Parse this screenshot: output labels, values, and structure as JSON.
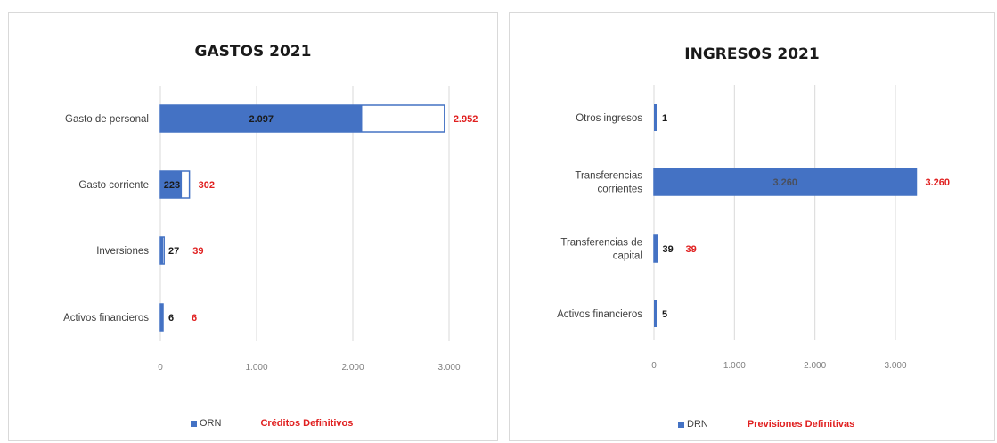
{
  "colors": {
    "executed": "#4472c4",
    "definitive": "#e02020",
    "grid": "#d9d9d9"
  },
  "chart_data": [
    {
      "type": "bar",
      "orientation": "horizontal",
      "title": "GASTOS 2021",
      "categories": [
        "Gasto de personal",
        "Gasto corriente",
        "Inversiones",
        "Activos financieros"
      ],
      "series": [
        {
          "name": "ORN",
          "values": [
            2097,
            223,
            27,
            6
          ],
          "labels": [
            "2.097",
            "223",
            "27",
            "6"
          ],
          "style": "filled"
        },
        {
          "name": "Créditos Definitivos",
          "values": [
            2952,
            302,
            39,
            6
          ],
          "labels": [
            "2.952",
            "302",
            "39",
            "6"
          ],
          "style": "outline"
        }
      ],
      "xlim": [
        0,
        3000
      ],
      "xticks": [
        0,
        1000,
        2000,
        3000
      ],
      "xtick_labels": [
        "0",
        "1.000",
        "2.000",
        "3.000"
      ],
      "grid": "vertical",
      "legend_position": "bottom"
    },
    {
      "type": "bar",
      "orientation": "horizontal",
      "title": "INGRESOS 2021",
      "categories": [
        "Otros ingresos",
        "Transferencias corrientes",
        "Transferencias de capital",
        "Activos financieros"
      ],
      "series": [
        {
          "name": "DRN",
          "values": [
            1,
            3260,
            39,
            5
          ],
          "labels": [
            "1",
            "3.260",
            "39",
            "5"
          ],
          "style": "filled"
        },
        {
          "name": "Previsiones Definitivas",
          "values": [
            null,
            3260,
            39,
            null
          ],
          "labels": [
            "",
            "3.260",
            "39",
            ""
          ],
          "style": "outline"
        }
      ],
      "xlim": [
        0,
        3000
      ],
      "xticks": [
        0,
        1000,
        2000,
        3000
      ],
      "xtick_labels": [
        "0",
        "1.000",
        "2.000",
        "3.000"
      ],
      "grid": "vertical",
      "legend_position": "bottom"
    }
  ]
}
